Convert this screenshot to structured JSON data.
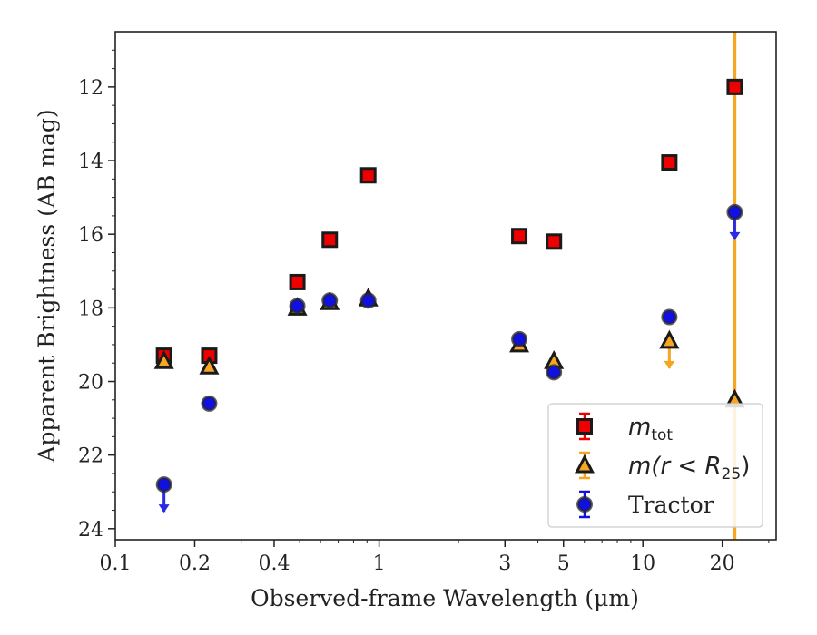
{
  "chart_data": {
    "type": "scatter",
    "xlabel": "Observed-frame Wavelength (μm)",
    "ylabel": "Apparent Brightness (AB mag)",
    "xscale": "log",
    "xlim": [
      0.1,
      32
    ],
    "ylim": [
      24.3,
      10.5
    ],
    "y_inverted": true,
    "x_ticks": [
      {
        "value": 0.1,
        "label": "0.1"
      },
      {
        "value": 0.2,
        "label": "0.2"
      },
      {
        "value": 0.4,
        "label": "0.4"
      },
      {
        "value": 1,
        "label": "1"
      },
      {
        "value": 3,
        "label": "3"
      },
      {
        "value": 5,
        "label": "5"
      },
      {
        "value": 10,
        "label": "10"
      },
      {
        "value": 20,
        "label": "20"
      }
    ],
    "y_ticks": [
      12,
      14,
      16,
      18,
      20,
      22,
      24
    ],
    "grid": false,
    "legend_position": "lower-right",
    "colors": {
      "mtot_fill": "#ee0000",
      "mr25_fill": "#f5a623",
      "tractor_fill": "#1010e0",
      "tractor_arrow": "#2a2ae6",
      "mr25_arrow": "#f5a623",
      "vertical_line": "#f5a623"
    },
    "series": [
      {
        "name": "m_tot",
        "marker": "square",
        "x": [
          0.153,
          0.227,
          0.49,
          0.65,
          0.91,
          3.4,
          4.6,
          12.6,
          22.3
        ],
        "y": [
          19.3,
          19.3,
          17.3,
          16.15,
          14.4,
          16.05,
          16.2,
          14.05,
          12.0
        ]
      },
      {
        "name": "m(r<R25)",
        "marker": "triangle",
        "x": [
          0.153,
          0.227,
          0.49,
          0.65,
          0.91,
          3.4,
          4.6,
          12.6,
          22.3
        ],
        "y": [
          19.45,
          19.6,
          18.0,
          17.85,
          17.75,
          19.0,
          19.45,
          18.9,
          20.5
        ],
        "upper_limits": [
          12.6
        ]
      },
      {
        "name": "Tractor",
        "marker": "circle",
        "x": [
          0.153,
          0.227,
          0.49,
          0.65,
          0.91,
          3.4,
          4.6,
          12.6,
          22.3
        ],
        "y": [
          22.8,
          20.6,
          17.95,
          17.8,
          17.8,
          18.85,
          19.75,
          18.25,
          15.4
        ],
        "upper_limits": [
          0.153,
          22.3
        ]
      }
    ],
    "vertical_line": {
      "x": 22.3
    },
    "legend": [
      {
        "label_main": "m",
        "label_sub": "tot",
        "marker": "square"
      },
      {
        "label_main": "m(r < R",
        "label_sub": "25",
        "label_tail": ")",
        "marker": "triangle"
      },
      {
        "label_main": "Tractor",
        "marker": "circle"
      }
    ]
  }
}
